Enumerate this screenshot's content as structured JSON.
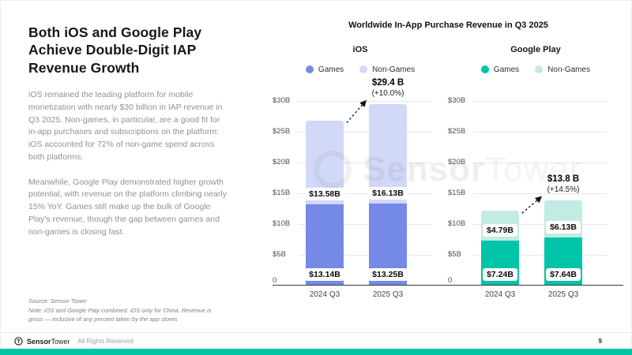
{
  "slide": {
    "title": "Both iOS and Google Play Achieve Double-Digit IAP Revenue Growth",
    "paragraphs": [
      "iOS remained the leading platform for mobile monetization with nearly $30 billion in IAP revenue in Q3 2025. Non-games, in particular, are a good fit for in-app purchases and subscriptions on the platform: iOS accounted for 72% of non-game spend across both platforms.",
      "Meanwhile, Google Play demonstrated higher growth potential, with revenue on the platform climbing nearly 15% YoY. Games still make up the bulk of Google Play's revenue, though the gap between games and non-games is closing fast."
    ],
    "source_note_line1": "Source: Sensor Tower",
    "source_note_line2": "Note: iOS and Google Play combined. iOS only for China. Revenue is gross — inclusive of any percent taken by the app stores"
  },
  "watermark": {
    "bold": "Sensor",
    "light": "Tower"
  },
  "footer": {
    "brand_bold": "Sensor",
    "brand_light": "Tower",
    "rights": "All Rights Reserved",
    "page": "9"
  },
  "chart_data": {
    "type": "bar",
    "stacked": true,
    "title": "Worldwide In-App Purchase Revenue in Q3 2025",
    "ylim": [
      0,
      30
    ],
    "ytick_values": [
      30,
      25,
      20,
      15,
      10,
      5,
      0
    ],
    "ytick_labels": [
      "$30B",
      "$25B",
      "$20B",
      "$15B",
      "$10B",
      "$5B",
      "0"
    ],
    "grid": true,
    "legend_position": "top",
    "charts": [
      {
        "name": "iOS",
        "categories": [
          "2024 Q3",
          "2025 Q3"
        ],
        "series": [
          {
            "name": "Games",
            "color": "#7589E7",
            "values": [
              13.14,
              13.25
            ],
            "labels": [
              "$13.14B",
              "$13.25B"
            ]
          },
          {
            "name": "Non-Games",
            "color": "#D2D8F8",
            "values": [
              13.58,
              16.13
            ],
            "labels": [
              "$13.58B",
              "$16.13B"
            ]
          }
        ],
        "totals": [
          26.72,
          29.38
        ],
        "annotation": {
          "total": "$29.4 B",
          "change": "(+10.0%)"
        }
      },
      {
        "name": "Google Play",
        "categories": [
          "2024 Q3",
          "2025 Q3"
        ],
        "series": [
          {
            "name": "Games",
            "color": "#00C4A8",
            "values": [
              7.24,
              7.64
            ],
            "labels": [
              "$7.24B",
              "$7.64B"
            ]
          },
          {
            "name": "Non-Games",
            "color": "#C2EBE4",
            "values": [
              4.79,
              6.13
            ],
            "labels": [
              "$4.79B",
              "$6.13B"
            ]
          }
        ],
        "totals": [
          12.03,
          13.77
        ],
        "annotation": {
          "total": "$13.8 B",
          "change": "(+14.5%)"
        }
      }
    ]
  }
}
